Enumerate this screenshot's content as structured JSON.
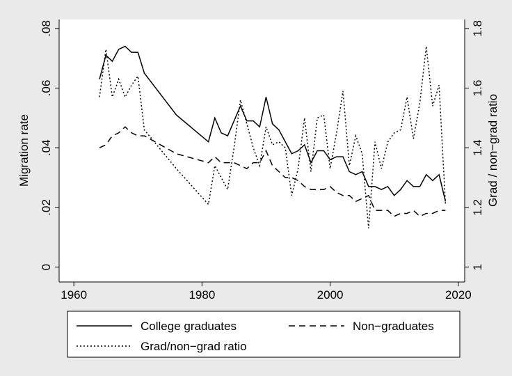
{
  "chart_data": {
    "type": "line",
    "x": [
      1964,
      1965,
      1966,
      1967,
      1968,
      1969,
      1970,
      1971,
      1976,
      1981,
      1982,
      1983,
      1984,
      1985,
      1986,
      1987,
      1988,
      1989,
      1990,
      1991,
      1992,
      1993,
      1994,
      1995,
      1996,
      1997,
      1998,
      1999,
      2000,
      2001,
      2002,
      2003,
      2004,
      2005,
      2006,
      2007,
      2008,
      2009,
      2010,
      2011,
      2012,
      2013,
      2014,
      2015,
      2016,
      2017,
      2018
    ],
    "series": [
      {
        "name": "College graduates",
        "color": "#000000",
        "style": "solid",
        "axis": "y",
        "values": [
          0.063,
          0.071,
          0.069,
          0.073,
          0.074,
          0.072,
          0.072,
          0.065,
          0.051,
          0.042,
          0.05,
          0.045,
          0.044,
          0.049,
          0.054,
          0.049,
          0.049,
          0.047,
          0.057,
          0.048,
          0.046,
          0.042,
          0.038,
          0.039,
          0.041,
          0.035,
          0.039,
          0.039,
          0.036,
          0.037,
          0.037,
          0.032,
          0.031,
          0.032,
          0.027,
          0.027,
          0.026,
          0.027,
          0.024,
          0.026,
          0.029,
          0.027,
          0.027,
          0.031,
          0.029,
          0.031,
          0.022
        ]
      },
      {
        "name": "Non−graduates",
        "color": "#000000",
        "style": "dashed",
        "axis": "y",
        "values": [
          0.04,
          0.041,
          0.044,
          0.045,
          0.047,
          0.045,
          0.044,
          0.044,
          0.038,
          0.035,
          0.037,
          0.035,
          0.035,
          0.035,
          0.034,
          0.033,
          0.035,
          0.035,
          0.039,
          0.034,
          0.032,
          0.03,
          0.03,
          0.029,
          0.027,
          0.026,
          0.026,
          0.026,
          0.027,
          0.025,
          0.024,
          0.024,
          0.022,
          0.023,
          0.024,
          0.019,
          0.019,
          0.019,
          0.017,
          0.018,
          0.018,
          0.019,
          0.017,
          0.018,
          0.018,
          0.019,
          0.019
        ]
      },
      {
        "name": "Grad/non−grad ratio",
        "color": "#000000",
        "style": "dotted",
        "axis": "y2",
        "values": [
          1.57,
          1.73,
          1.57,
          1.63,
          1.57,
          1.61,
          1.64,
          1.46,
          1.33,
          1.21,
          1.34,
          1.3,
          1.26,
          1.4,
          1.56,
          1.48,
          1.4,
          1.34,
          1.47,
          1.41,
          1.42,
          1.4,
          1.24,
          1.33,
          1.5,
          1.32,
          1.5,
          1.51,
          1.33,
          1.45,
          1.59,
          1.34,
          1.44,
          1.38,
          1.13,
          1.42,
          1.33,
          1.42,
          1.45,
          1.46,
          1.57,
          1.43,
          1.55,
          1.74,
          1.54,
          1.61,
          1.21
        ]
      }
    ],
    "ylabel": "Migration rate",
    "y2label": "Grad / non−grad ratio",
    "xlim": [
      1957.7,
      2021
    ],
    "xticks": [
      1960,
      1980,
      2000,
      2020
    ],
    "ylim": [
      -0.005,
      0.083
    ],
    "yticks": [
      0,
      {
        "value": 0.02,
        "label": ".02"
      },
      {
        "value": 0.04,
        "label": ".04"
      },
      {
        "value": 0.06,
        "label": ".06"
      },
      {
        "value": 0.08,
        "label": ".08"
      }
    ],
    "y2lim": [
      0.95,
      1.83
    ],
    "y2ticks": [
      1,
      1.2,
      1.4,
      1.6,
      1.8
    ],
    "legend": "bottom"
  }
}
